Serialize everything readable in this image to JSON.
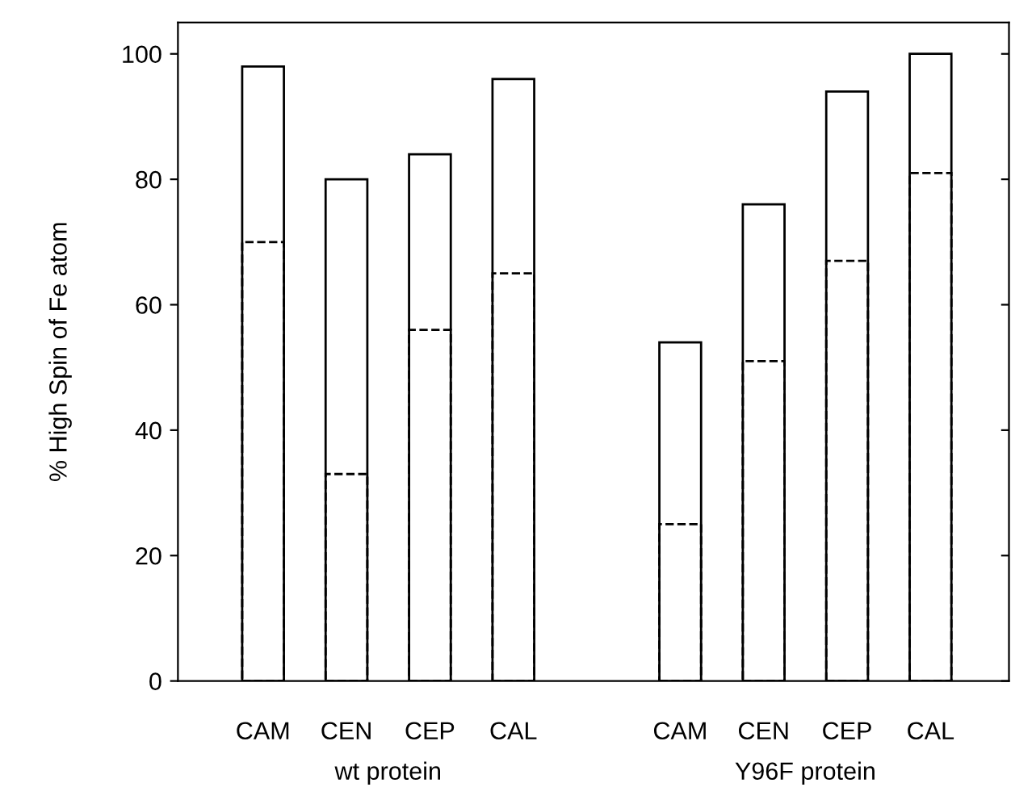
{
  "chart_data": {
    "type": "bar",
    "ylabel": "% High Spin of Fe atom",
    "categories": [
      "CAM",
      "CEN",
      "CEP",
      "CAL",
      null,
      "CAM",
      "CEN",
      "CEP",
      "CAL"
    ],
    "series": [
      {
        "color": "#ffffff",
        "values": [
          98,
          80,
          84,
          96,
          null,
          54,
          76,
          94,
          100
        ],
        "line_style": "solid"
      },
      {
        "color": "#000000",
        "values": [
          70,
          33,
          56,
          65,
          null,
          25,
          51,
          67,
          81
        ],
        "line_style": "dashed"
      }
    ],
    "ylim": [
      0,
      105
    ],
    "yticks": [
      0,
      20,
      40,
      60,
      80,
      100
    ],
    "grid": false,
    "legend": false,
    "annotations": [
      "wt protein",
      "Y96F protein"
    ]
  }
}
